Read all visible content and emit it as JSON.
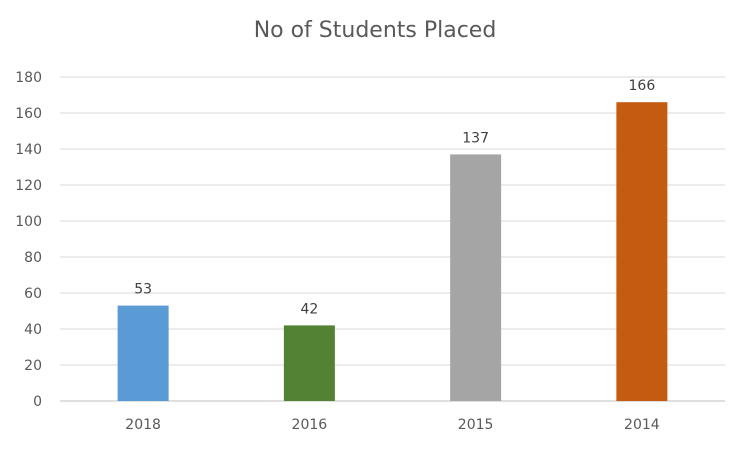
{
  "chart_data": {
    "type": "bar",
    "title": "No of Students Placed",
    "categories": [
      "2018",
      "2016",
      "2015",
      "2014"
    ],
    "values": [
      53,
      42,
      137,
      166
    ],
    "colors": [
      "#5b9bd5",
      "#548235",
      "#a5a5a5",
      "#c55a11"
    ],
    "ylim": [
      0,
      180
    ],
    "yticks": [
      0,
      20,
      40,
      60,
      80,
      100,
      120,
      140,
      160,
      180
    ],
    "grid": true,
    "data_labels": true,
    "xlabel": "",
    "ylabel": ""
  }
}
